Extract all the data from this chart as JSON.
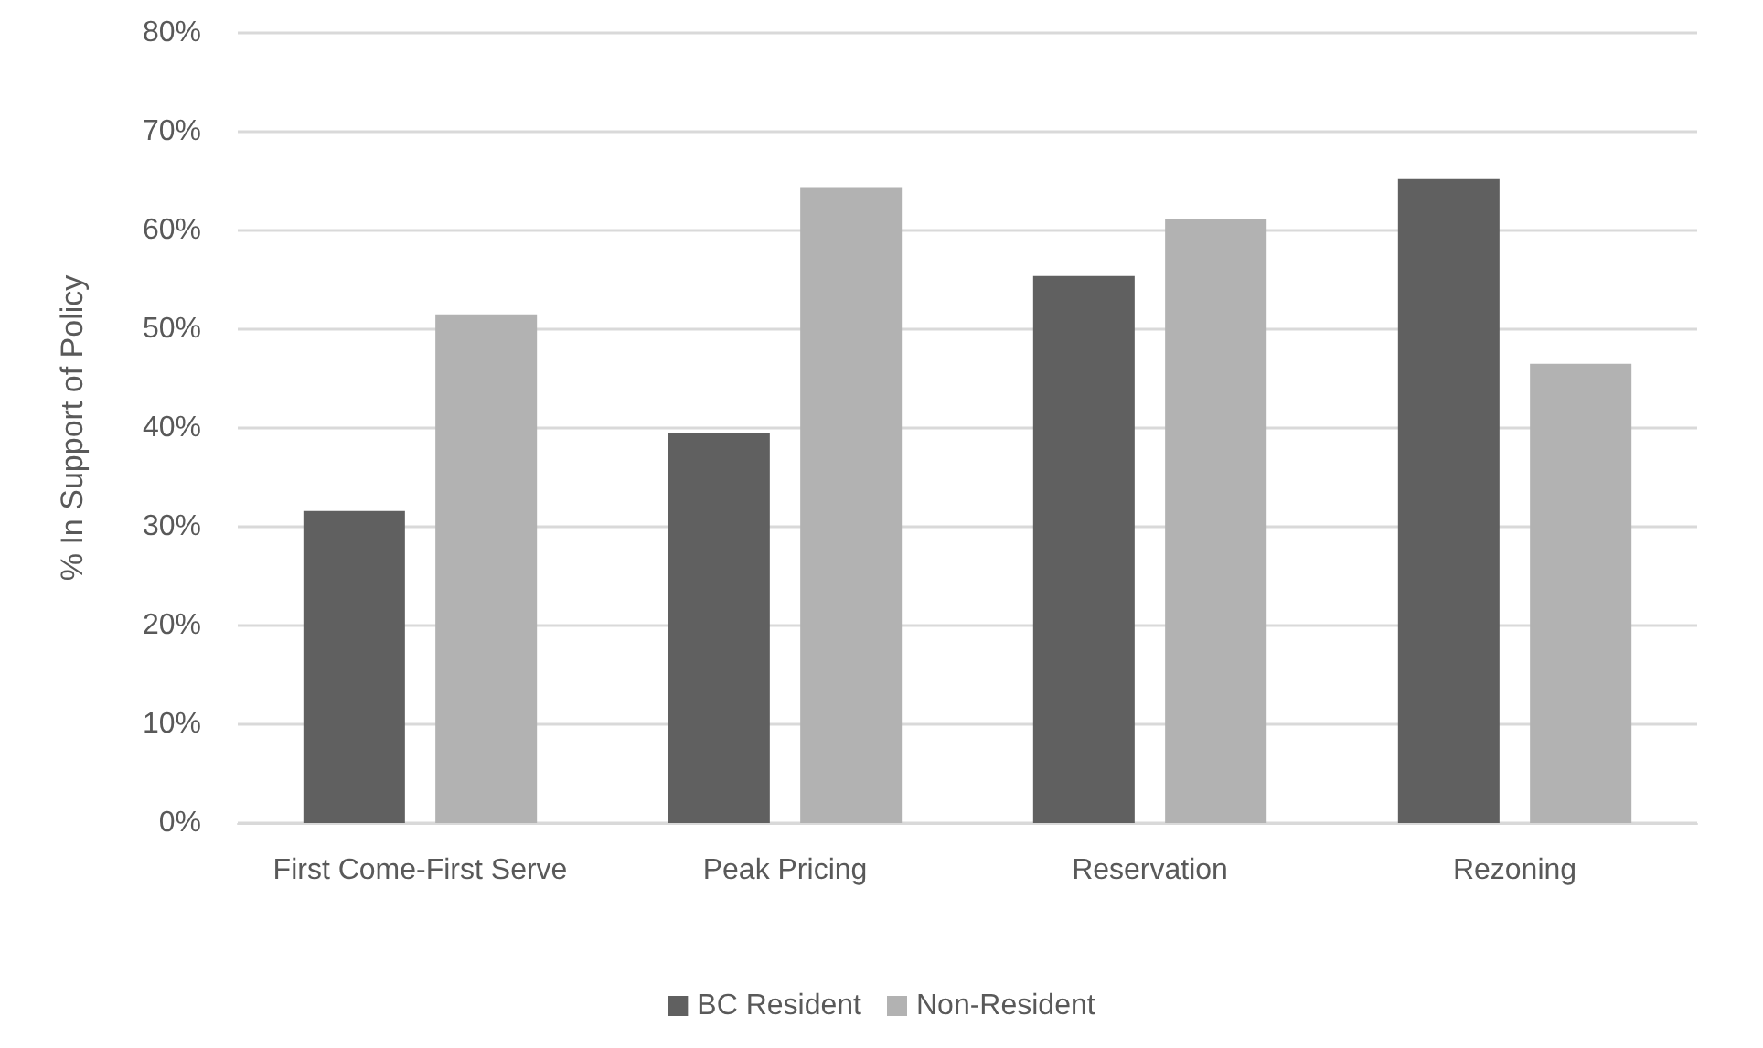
{
  "chart_data": {
    "type": "bar",
    "ylabel": "% In Support of Policy",
    "categories": [
      "First Come-First Serve",
      "Peak Pricing",
      "Reservation",
      "Rezoning"
    ],
    "series": [
      {
        "name": "BC Resident",
        "color": "#606060",
        "values": [
          31.6,
          39.5,
          55.4,
          65.2
        ]
      },
      {
        "name": "Non-Resident",
        "color": "#b2b2b2",
        "values": [
          51.5,
          64.3,
          61.1,
          46.5
        ]
      }
    ],
    "ylim": [
      0,
      80
    ],
    "yticks": [
      {
        "value": 0,
        "label": "0%"
      },
      {
        "value": 10,
        "label": "10%"
      },
      {
        "value": 20,
        "label": "20%"
      },
      {
        "value": 30,
        "label": "30%"
      },
      {
        "value": 40,
        "label": "40%"
      },
      {
        "value": 50,
        "label": "50%"
      },
      {
        "value": 60,
        "label": "60%"
      },
      {
        "value": 70,
        "label": "70%"
      },
      {
        "value": 80,
        "label": "80%"
      }
    ],
    "grid": "y",
    "legend": "bottom"
  }
}
